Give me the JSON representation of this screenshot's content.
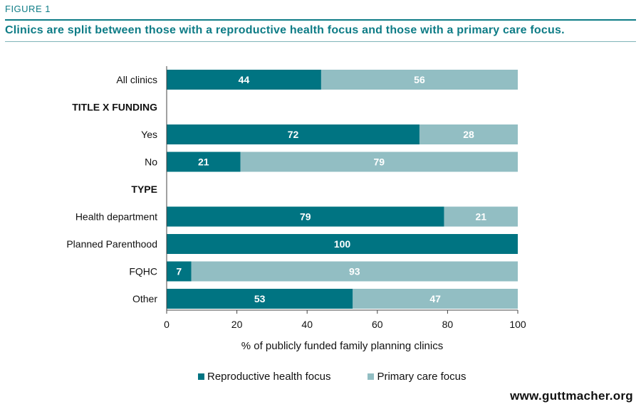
{
  "figure_label": "FIGURE 1",
  "title": "Clinics are split between those with a reproductive health focus and those with a primary care focus.",
  "source": "www.guttmacher.org",
  "colors": {
    "reproductive": "#007482",
    "primary": "#92bec3",
    "accent": "#0e7c86"
  },
  "chart_data": {
    "type": "bar",
    "orientation": "horizontal",
    "stacked": true,
    "categories": [
      "All clinics",
      "TITLE X FUNDING",
      "Yes",
      "No",
      "TYPE",
      "Health department",
      "Planned Parenthood",
      "FQHC",
      "Other"
    ],
    "group_headers": [
      "TITLE X FUNDING",
      "TYPE"
    ],
    "series": [
      {
        "name": "Reproductive health focus",
        "values": [
          44,
          null,
          72,
          21,
          null,
          79,
          100,
          7,
          53
        ]
      },
      {
        "name": "Primary care focus",
        "values": [
          56,
          null,
          28,
          79,
          null,
          21,
          null,
          93,
          47
        ]
      }
    ],
    "xlabel": "% of publicly funded family planning clinics",
    "xlim": [
      0,
      100
    ],
    "xticks": [
      "0",
      "20",
      "40",
      "60",
      "80",
      "100"
    ],
    "grid": false,
    "legend_position": "bottom"
  }
}
